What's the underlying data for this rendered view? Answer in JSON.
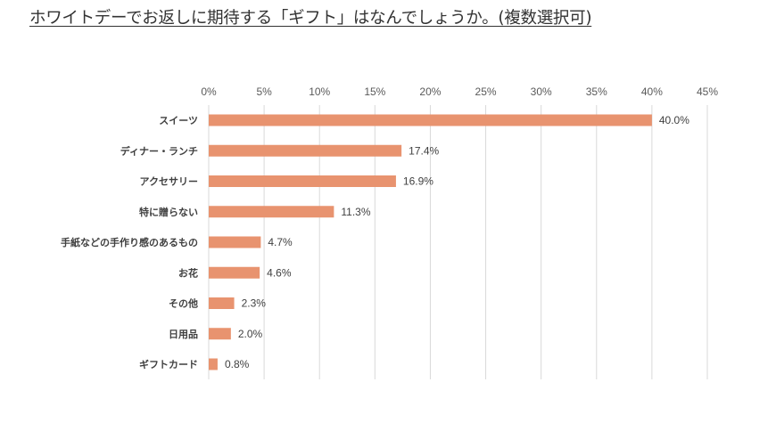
{
  "chart_data": {
    "type": "bar",
    "orientation": "horizontal",
    "title": "ホワイトデーでお返しに期待する「ギフト」はなんでしょうか。(複数選択可)",
    "categories": [
      "スイーツ",
      "ディナー・ランチ",
      "アクセサリー",
      "特に贈らない",
      "手紙などの手作り感のあるもの",
      "お花",
      "その他",
      "日用品",
      "ギフトカード"
    ],
    "values": [
      40.0,
      17.4,
      16.9,
      11.3,
      4.7,
      4.6,
      2.3,
      2.0,
      0.8
    ],
    "data_labels": [
      "40.0%",
      "17.4%",
      "16.9%",
      "11.3%",
      "4.7%",
      "4.6%",
      "2.3%",
      "2.0%",
      "0.8%"
    ],
    "x_ticks": [
      "0%",
      "5%",
      "10%",
      "15%",
      "20%",
      "25%",
      "30%",
      "35%",
      "40%",
      "45%"
    ],
    "xlim": [
      0,
      45
    ],
    "xaxis_position": "top",
    "grid": true,
    "bar_color": "#e8936f",
    "grid_color": "#d9d9d9"
  }
}
